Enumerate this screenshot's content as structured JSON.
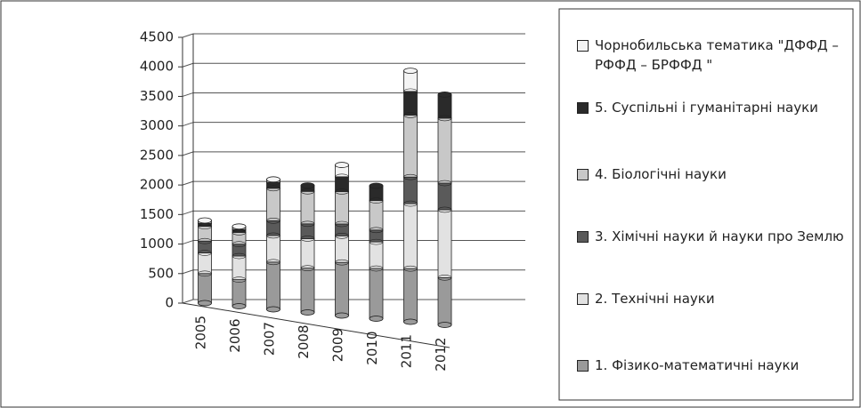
{
  "chart_data": {
    "type": "bar",
    "stacked": true,
    "categories": [
      "2005",
      "2006",
      "2007",
      "2008",
      "2009",
      "2010",
      "2011",
      "2012"
    ],
    "series": [
      {
        "name": "1. Фізико-математичні науки",
        "color": "#9a9a9a",
        "values": [
          500,
          450,
          800,
          750,
          900,
          850,
          900,
          800
        ]
      },
      {
        "name": "2. Технічні науки",
        "color": "#e2e2e2",
        "values": [
          350,
          400,
          450,
          500,
          450,
          450,
          1100,
          1150
        ]
      },
      {
        "name": "3. Хімічні науки й науки про Землю",
        "color": "#5a5a5a",
        "values": [
          200,
          200,
          250,
          250,
          200,
          200,
          450,
          450
        ]
      },
      {
        "name": "4. Біологічні науки",
        "color": "#c8c8c8",
        "values": [
          250,
          200,
          550,
          550,
          550,
          500,
          1050,
          1100
        ]
      },
      {
        "name": "5. Суспільні і гуманітарні науки",
        "color": "#2a2a2a",
        "values": [
          50,
          50,
          100,
          100,
          250,
          250,
          400,
          400
        ]
      },
      {
        "name": "Чорнобильська тематика \"ДФФД – РФФД – БРФФД \"",
        "color": "#f4f4f4",
        "values": [
          50,
          50,
          50,
          0,
          200,
          0,
          350,
          0
        ]
      }
    ],
    "ylim": [
      0,
      4500
    ],
    "yticks": [
      0,
      500,
      1000,
      1500,
      2000,
      2500,
      3000,
      3500,
      4000,
      4500
    ],
    "grid": true
  }
}
